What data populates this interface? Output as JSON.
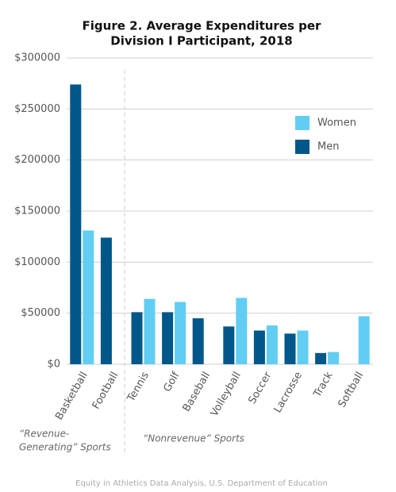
{
  "chart_data": {
    "type": "bar",
    "title": [
      "Figure 2. Average Expenditures per",
      "Division I Participant, 2018"
    ],
    "categories": [
      "Basketball",
      "Football",
      "Tennis",
      "Golf",
      "Baseball",
      "Volleyball",
      "Soccer",
      "Lacrosse",
      "Track",
      "Softball"
    ],
    "series": [
      {
        "name": "Women",
        "color": "#62cdf2",
        "values": [
          131000,
          null,
          64000,
          61000,
          null,
          65000,
          38000,
          33000,
          12000,
          47000
        ]
      },
      {
        "name": "Men",
        "color": "#00578a",
        "values": [
          274000,
          124000,
          51000,
          51000,
          45000,
          37000,
          33000,
          30000,
          11000,
          null
        ]
      }
    ],
    "ylim": [
      0,
      300000
    ],
    "yticks": [
      {
        "value": 0,
        "label": "$0"
      },
      {
        "value": 50000,
        "label": "$50000"
      },
      {
        "value": 100000,
        "label": "$100000"
      },
      {
        "value": 150000,
        "label": "$150000"
      },
      {
        "value": 200000,
        "label": "$200000"
      },
      {
        "value": 250000,
        "label": "$250000"
      },
      {
        "value": 300000,
        "label": "$300000"
      }
    ],
    "grid": true,
    "annotations": [
      [
        "“Revenue-",
        "Generating” Sports"
      ],
      [
        "“Nonrevenue” Sports"
      ]
    ],
    "source": "Equity in Athletics Data Analysis, U.S. Department of Education"
  }
}
